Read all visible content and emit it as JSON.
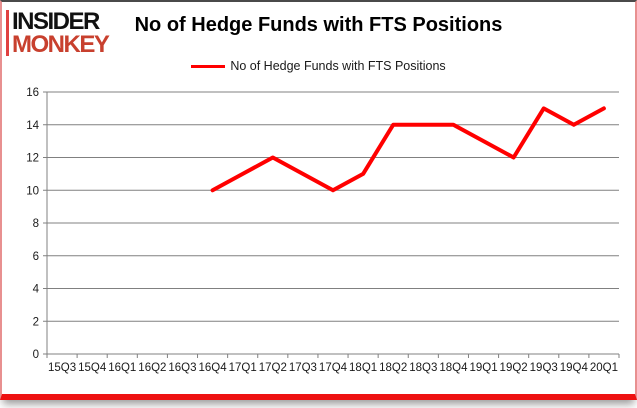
{
  "branding": {
    "logo_line1": "INSIDER",
    "logo_line2": "MONKEY"
  },
  "header": {
    "title": "No of Hedge Funds with FTS Positions"
  },
  "legend": {
    "label": "No of Hedge Funds with FTS Positions"
  },
  "chart_data": {
    "type": "line",
    "title": "No of Hedge Funds with FTS Positions",
    "xlabel": "",
    "ylabel": "",
    "categories": [
      "15Q3",
      "15Q4",
      "16Q1",
      "16Q2",
      "16Q3",
      "16Q4",
      "17Q1",
      "17Q2",
      "17Q3",
      "17Q4",
      "18Q1",
      "18Q2",
      "18Q3",
      "18Q4",
      "19Q1",
      "19Q2",
      "19Q3",
      "19Q4",
      "20Q1"
    ],
    "series": [
      {
        "name": "No of Hedge Funds with FTS Positions",
        "color": "#ff0000",
        "values": [
          null,
          null,
          null,
          null,
          null,
          10,
          11,
          12,
          11,
          10,
          11,
          14,
          14,
          14,
          13,
          12,
          15,
          14,
          15
        ]
      }
    ],
    "ylim": [
      0,
      16
    ],
    "ytick_step": 2,
    "grid": true,
    "legend_position": "top"
  },
  "colors": {
    "series_line": "#ff0000",
    "accent_bottom_bar": "#ee1111",
    "logo_red": "#c8402e",
    "grid_line": "#808080",
    "axis_text": "#1a1a1a"
  }
}
